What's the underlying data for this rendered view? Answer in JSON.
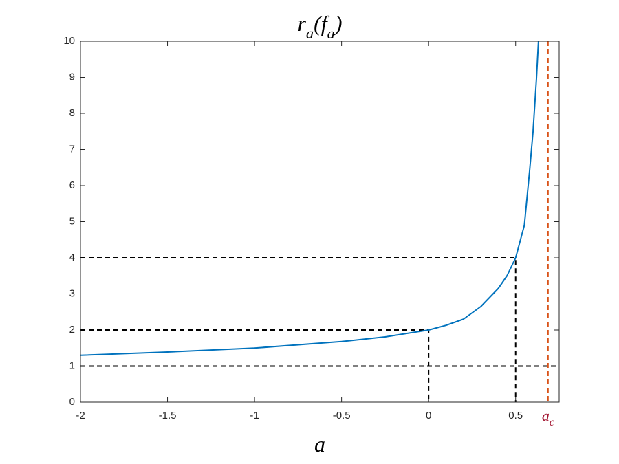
{
  "chart_data": {
    "type": "line",
    "title": "r_a(f_a)",
    "x_label": "a",
    "x": [
      -2,
      -1.5,
      -1,
      -0.5,
      -0.25,
      0,
      0.1,
      0.2,
      0.3,
      0.4,
      0.45,
      0.5,
      0.55,
      0.58,
      0.6,
      0.62,
      0.631
    ],
    "series": [
      {
        "name": "r_a(f_a)",
        "color": "#0072bd",
        "values": [
          1.3,
          1.39,
          1.5,
          1.68,
          1.81,
          2,
          2.13,
          2.3,
          2.65,
          3.15,
          3.5,
          4,
          4.9,
          6.4,
          7.5,
          9,
          10
        ]
      }
    ],
    "guides": [
      {
        "x": 0.5,
        "y": 4
      },
      {
        "x": 0,
        "y": 2
      }
    ],
    "hline": 1,
    "critical": {
      "label": "a_c",
      "value": 0.686,
      "color": "#d95319",
      "label_color": "#a2142f"
    },
    "xlim": [
      -2,
      0.75
    ],
    "ylim": [
      0,
      10
    ],
    "xticks": [
      -2,
      -1.5,
      -1,
      -0.5,
      0,
      0.5
    ],
    "yticks": [
      0,
      1,
      2,
      3,
      4,
      5,
      6,
      7,
      8,
      9,
      10
    ],
    "grid": false
  }
}
